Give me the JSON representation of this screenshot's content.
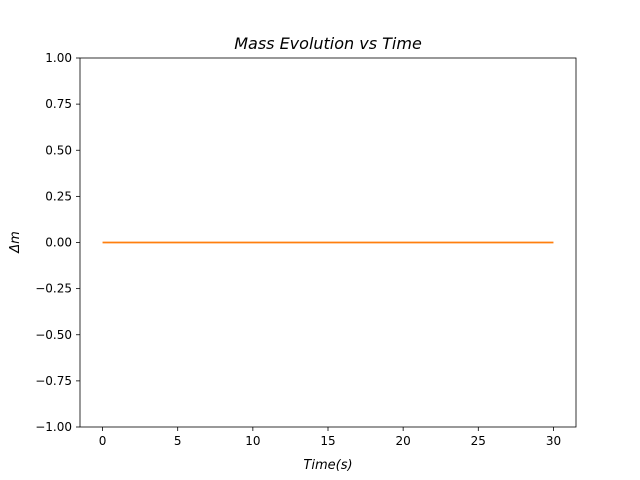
{
  "chart_data": {
    "type": "line",
    "title": "Mass Evolution vs Time",
    "xlabel": "Time(s)",
    "ylabel": "Δm",
    "xlim": [
      -1.5,
      31.5
    ],
    "ylim": [
      -1.0,
      1.0
    ],
    "xticks": [
      0,
      5,
      10,
      15,
      20,
      25,
      30
    ],
    "xtick_labels": [
      "0",
      "5",
      "10",
      "15",
      "20",
      "25",
      "30"
    ],
    "yticks": [
      1.0,
      0.75,
      0.5,
      0.25,
      0.0,
      -0.25,
      -0.5,
      -0.75,
      -1.0
    ],
    "ytick_labels": [
      "1.00",
      "0.75",
      "0.50",
      "0.25",
      "0.00",
      "−0.25",
      "−0.50",
      "−0.75",
      "−1.00"
    ],
    "grid": false,
    "series": [
      {
        "color": "#ff7f0e",
        "x": [
          0,
          30
        ],
        "y": [
          0.0,
          0.0
        ]
      }
    ]
  }
}
